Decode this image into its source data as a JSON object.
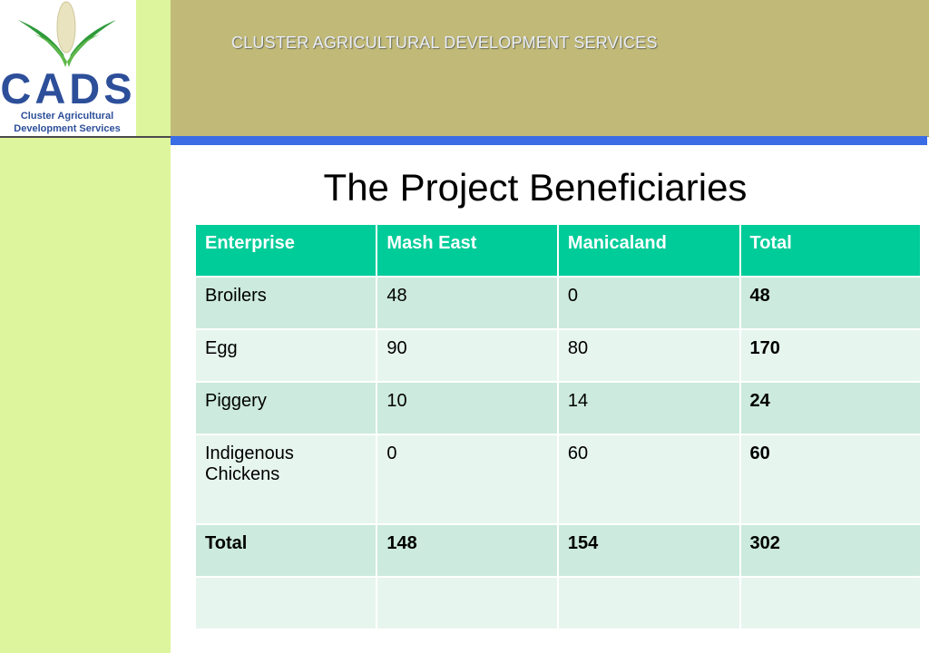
{
  "header": {
    "title": "CLUSTER AGRICULTURAL DEVELOPMENT SERVICES"
  },
  "logo": {
    "name": "CADS",
    "subtitle_line1": "Cluster Agricultural",
    "subtitle_line2": "Development Services"
  },
  "slide": {
    "title": "The Project Beneficiaries"
  },
  "table": {
    "headers": [
      "Enterprise",
      "Mash East",
      "Manicaland",
      "Total"
    ],
    "rows": [
      [
        "Broilers",
        "48",
        "0",
        "48"
      ],
      [
        "Egg",
        "90",
        "80",
        "170"
      ],
      [
        "Piggery",
        "10",
        "14",
        "24"
      ],
      [
        "Indigenous Chickens",
        "0",
        "60",
        "60"
      ],
      [
        "Total",
        "148",
        "154",
        "302"
      ],
      [
        "",
        "",
        "",
        ""
      ]
    ]
  },
  "colors": {
    "header_band": "#c1b978",
    "blue_bar": "#3a6ce6",
    "left_stripe": "#ddf59c",
    "table_header": "#00cc99",
    "row_odd": "#cceadd",
    "row_even": "#e7f5ef",
    "logo_blue": "#2d4f9a",
    "logo_green": "#2e9a3a"
  }
}
